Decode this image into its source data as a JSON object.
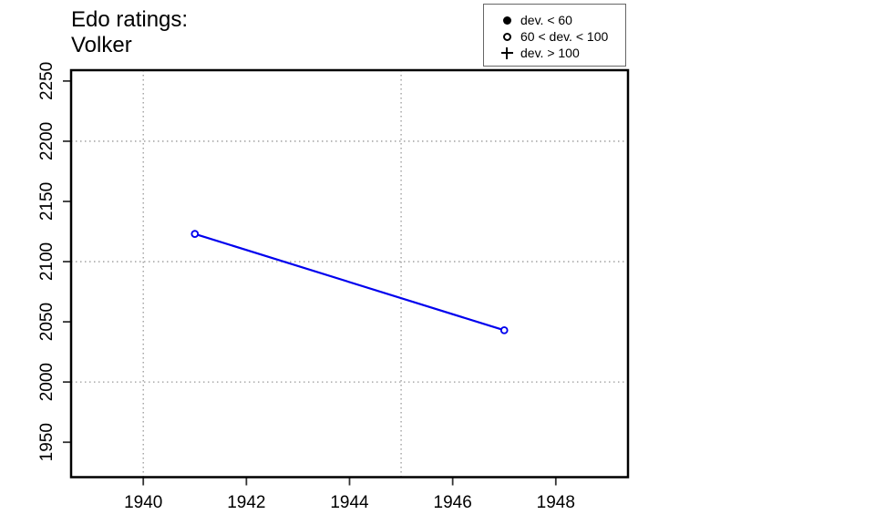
{
  "title": {
    "line1": "Edo ratings:",
    "line2": "Volker"
  },
  "legend": {
    "position": "top-right",
    "items": [
      {
        "symbol": "filled-circle",
        "label": "dev. < 60"
      },
      {
        "symbol": "open-circle",
        "label": "60 < dev. < 100"
      },
      {
        "symbol": "plus",
        "label": "dev. > 100"
      }
    ]
  },
  "chart_data": {
    "type": "line",
    "title": "Edo ratings: Volker",
    "xlabel": "",
    "ylabel": "",
    "series": [
      {
        "name": "Volker",
        "x": [
          1941,
          1947
        ],
        "y": [
          2123,
          2043
        ],
        "point_symbol": "open-circle",
        "dev_class": "60 < dev. < 100"
      }
    ],
    "x_ticks": [
      1940,
      1942,
      1944,
      1946,
      1948
    ],
    "y_ticks": [
      1950,
      2000,
      2050,
      2100,
      2150,
      2200,
      2250
    ],
    "x_gridlines": [
      1940,
      1945
    ],
    "y_gridlines": [
      2000,
      2100,
      2200
    ],
    "x_domain": [
      1938.6,
      1949.4
    ],
    "y_domain": [
      1921,
      2259
    ],
    "grid": true,
    "legend_position": "top-right",
    "colors": {
      "line": "#0000EE",
      "point_stroke": "#0000EE",
      "point_fill": "#ffffff",
      "axis": "#000000",
      "tick": "#333333",
      "tick_label": "#000000",
      "gridline": "#999999"
    }
  }
}
